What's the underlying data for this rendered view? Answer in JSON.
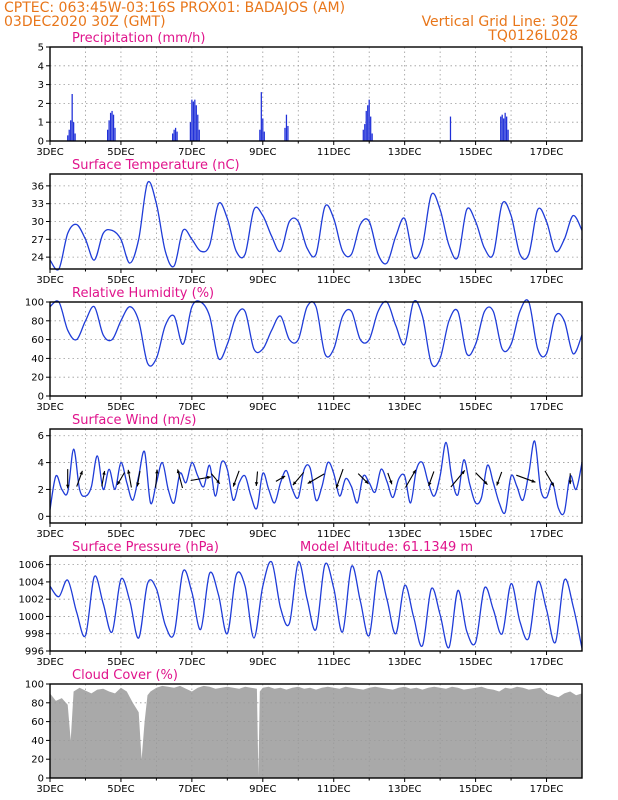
{
  "header": {
    "line1_left": "CPTEC:   063:45W-03:16S   PROX01: BADAJOS (AM)",
    "line2_left": "03DEC2020 30Z (GMT)",
    "line2_right": "Vertical Grid Line: 30Z",
    "line3_right": "TQ0126L028"
  },
  "colors": {
    "header": "#e8761a",
    "panel_title": "#e0148c",
    "series": "#1f3cd8",
    "cloud": "#a9a9a9"
  },
  "x_axis": {
    "range_hours": [
      0,
      360
    ],
    "tick_labels": [
      "3DEC",
      "5DEC",
      "7DEC",
      "9DEC",
      "11DEC",
      "13DEC",
      "15DEC",
      "17DEC"
    ],
    "tick_hours": [
      0,
      48,
      96,
      144,
      192,
      240,
      288,
      336
    ],
    "year_label": "2020"
  },
  "chart_data": [
    {
      "type": "bar",
      "title": "Precipitation (mm/h)",
      "ylim": [
        0,
        5
      ],
      "yticks": [
        0,
        1,
        2,
        3,
        4,
        5
      ],
      "bars": [
        {
          "x": 12,
          "y": 0.3
        },
        {
          "x": 13,
          "y": 0.6
        },
        {
          "x": 14,
          "y": 1.1
        },
        {
          "x": 15,
          "y": 2.5
        },
        {
          "x": 16,
          "y": 1.0
        },
        {
          "x": 17,
          "y": 0.4
        },
        {
          "x": 39,
          "y": 0.6
        },
        {
          "x": 40,
          "y": 1.1
        },
        {
          "x": 41,
          "y": 1.5
        },
        {
          "x": 42,
          "y": 1.6
        },
        {
          "x": 43,
          "y": 1.4
        },
        {
          "x": 44,
          "y": 0.7
        },
        {
          "x": 83,
          "y": 0.4
        },
        {
          "x": 84,
          "y": 0.6
        },
        {
          "x": 85,
          "y": 0.7
        },
        {
          "x": 86,
          "y": 0.5
        },
        {
          "x": 95,
          "y": 1.0
        },
        {
          "x": 96,
          "y": 2.2
        },
        {
          "x": 97,
          "y": 2.1
        },
        {
          "x": 98,
          "y": 2.2
        },
        {
          "x": 99,
          "y": 1.9
        },
        {
          "x": 100,
          "y": 1.4
        },
        {
          "x": 101,
          "y": 0.6
        },
        {
          "x": 142,
          "y": 0.6
        },
        {
          "x": 143,
          "y": 2.6
        },
        {
          "x": 144,
          "y": 1.2
        },
        {
          "x": 145,
          "y": 0.5
        },
        {
          "x": 159,
          "y": 0.7
        },
        {
          "x": 160,
          "y": 1.4
        },
        {
          "x": 161,
          "y": 0.8
        },
        {
          "x": 212,
          "y": 0.6
        },
        {
          "x": 213,
          "y": 0.9
        },
        {
          "x": 214,
          "y": 1.6
        },
        {
          "x": 215,
          "y": 1.9
        },
        {
          "x": 216,
          "y": 2.2
        },
        {
          "x": 217,
          "y": 1.3
        },
        {
          "x": 218,
          "y": 0.4
        },
        {
          "x": 271,
          "y": 1.3
        },
        {
          "x": 305,
          "y": 1.3
        },
        {
          "x": 306,
          "y": 1.4
        },
        {
          "x": 307,
          "y": 1.2
        },
        {
          "x": 308,
          "y": 1.5
        },
        {
          "x": 309,
          "y": 1.3
        },
        {
          "x": 310,
          "y": 0.6
        }
      ]
    },
    {
      "type": "line",
      "title": "Surface Temperature (nC)",
      "ylim": [
        22,
        38
      ],
      "yticks": [
        24,
        27,
        30,
        33,
        36
      ],
      "x": [
        0,
        6,
        12,
        18,
        24,
        30,
        36,
        42,
        48,
        54,
        60,
        66,
        72,
        78,
        84,
        90,
        96,
        102,
        108,
        114,
        120,
        126,
        132,
        138,
        144,
        150,
        156,
        162,
        168,
        174,
        180,
        186,
        192,
        198,
        204,
        210,
        216,
        222,
        228,
        234,
        240,
        246,
        252,
        258,
        264,
        270,
        276,
        282,
        288,
        294,
        300,
        306,
        312,
        318,
        324,
        330,
        336,
        342,
        348,
        354,
        360
      ],
      "y": [
        23.5,
        22,
        28,
        29.5,
        27,
        23.5,
        28,
        28.5,
        27,
        23,
        27,
        36.5,
        33,
        25,
        22.5,
        28.5,
        27,
        25,
        26,
        33,
        30.5,
        25,
        24.5,
        32,
        31,
        27.5,
        25,
        30,
        30,
        25.5,
        24.5,
        32.5,
        30.5,
        25,
        24.5,
        29.5,
        30,
        24.5,
        23,
        27.5,
        30.5,
        24,
        26,
        34.5,
        32,
        26,
        24,
        32,
        30,
        25.5,
        24.5,
        33,
        31,
        24.5,
        24.5,
        32,
        30,
        25,
        27,
        31,
        28.5
      ]
    },
    {
      "type": "line",
      "title": "Relative Humidity (%)",
      "ylim": [
        0,
        100
      ],
      "yticks": [
        0,
        20,
        40,
        60,
        80,
        100
      ],
      "x": [
        0,
        6,
        12,
        18,
        24,
        30,
        36,
        42,
        48,
        54,
        60,
        66,
        72,
        78,
        84,
        90,
        96,
        102,
        108,
        114,
        120,
        126,
        132,
        138,
        144,
        150,
        156,
        162,
        168,
        174,
        180,
        186,
        192,
        198,
        204,
        210,
        216,
        222,
        228,
        234,
        240,
        246,
        252,
        258,
        264,
        270,
        276,
        282,
        288,
        294,
        300,
        306,
        312,
        318,
        324,
        330,
        336,
        342,
        348,
        354,
        360
      ],
      "y": [
        95,
        100,
        70,
        60,
        80,
        95,
        65,
        60,
        80,
        95,
        80,
        35,
        40,
        75,
        85,
        55,
        95,
        100,
        85,
        40,
        55,
        85,
        90,
        50,
        50,
        70,
        85,
        60,
        60,
        95,
        95,
        45,
        50,
        85,
        90,
        60,
        60,
        90,
        100,
        75,
        55,
        100,
        85,
        35,
        40,
        80,
        90,
        45,
        55,
        90,
        90,
        50,
        55,
        90,
        100,
        50,
        45,
        85,
        80,
        45,
        65
      ]
    },
    {
      "type": "line",
      "title": "Surface Wind (m/s)",
      "ylim": [
        -0.5,
        6.5
      ],
      "yticks": [
        0,
        2,
        4,
        6
      ],
      "x": [
        0,
        4,
        8,
        12,
        16,
        20,
        24,
        28,
        32,
        36,
        40,
        44,
        48,
        52,
        56,
        60,
        64,
        68,
        72,
        76,
        80,
        84,
        88,
        92,
        96,
        100,
        104,
        108,
        112,
        116,
        120,
        124,
        128,
        132,
        136,
        140,
        144,
        148,
        152,
        156,
        160,
        164,
        168,
        172,
        176,
        180,
        184,
        188,
        192,
        196,
        200,
        204,
        208,
        212,
        216,
        220,
        224,
        228,
        232,
        236,
        240,
        244,
        248,
        252,
        256,
        260,
        264,
        268,
        272,
        276,
        280,
        284,
        288,
        292,
        296,
        300,
        304,
        308,
        312,
        316,
        320,
        324,
        328,
        332,
        336,
        340,
        344,
        348,
        352,
        356,
        360
      ],
      "y": [
        0.5,
        3.0,
        2.0,
        1.8,
        5.0,
        2.0,
        1.5,
        2.2,
        4.5,
        2.0,
        3.5,
        2.0,
        4.0,
        2.5,
        1.2,
        3.0,
        4.8,
        1.0,
        2.5,
        4.0,
        2.0,
        1.0,
        3.2,
        2.5,
        4.0,
        3.0,
        2.2,
        3.8,
        1.5,
        4.0,
        3.5,
        1.2,
        2.5,
        3.0,
        1.5,
        0.6,
        3.2,
        2.0,
        1.0,
        2.5,
        3.4,
        2.0,
        1.4,
        3.5,
        3.6,
        1.2,
        2.2,
        4.0,
        3.2,
        1.5,
        2.8,
        2.2,
        1.0,
        3.0,
        2.5,
        1.8,
        3.5,
        2.6,
        1.4,
        2.8,
        3.0,
        1.0,
        3.5,
        4.0,
        2.5,
        1.5,
        3.0,
        5.5,
        2.8,
        1.6,
        4.2,
        2.4,
        1.0,
        1.4,
        3.8,
        2.5,
        1.0,
        0.3,
        3.0,
        2.2,
        1.2,
        3.2,
        5.6,
        2.0,
        1.4,
        2.5,
        0.6,
        0.3,
        3.0,
        2.0,
        4.0
      ],
      "barbs_arrows": [
        {
          "x": 12,
          "dir_deg": 180,
          "len": 1.6
        },
        {
          "x": 20,
          "dir_deg": 20,
          "len": 1.4
        },
        {
          "x": 36,
          "dir_deg": 10,
          "len": 1.3
        },
        {
          "x": 48,
          "dir_deg": 210,
          "len": 1.2
        },
        {
          "x": 54,
          "dir_deg": 350,
          "len": 1.5
        },
        {
          "x": 60,
          "dir_deg": 190,
          "len": 1.3
        },
        {
          "x": 72,
          "dir_deg": 5,
          "len": 1.5
        },
        {
          "x": 88,
          "dir_deg": 345,
          "len": 1.6
        },
        {
          "x": 102,
          "dir_deg": 80,
          "len": 1.7
        },
        {
          "x": 112,
          "dir_deg": 140,
          "len": 1.1
        },
        {
          "x": 126,
          "dir_deg": 200,
          "len": 1.4
        },
        {
          "x": 140,
          "dir_deg": 185,
          "len": 1.2
        },
        {
          "x": 156,
          "dir_deg": 60,
          "len": 0.9
        },
        {
          "x": 168,
          "dir_deg": 220,
          "len": 1.4
        },
        {
          "x": 180,
          "dir_deg": 240,
          "len": 1.6
        },
        {
          "x": 196,
          "dir_deg": 200,
          "len": 1.7
        },
        {
          "x": 212,
          "dir_deg": 135,
          "len": 1.2
        },
        {
          "x": 230,
          "dir_deg": 160,
          "len": 1.0
        },
        {
          "x": 244,
          "dir_deg": 30,
          "len": 1.7
        },
        {
          "x": 258,
          "dir_deg": 200,
          "len": 1.3
        },
        {
          "x": 276,
          "dir_deg": 40,
          "len": 1.8
        },
        {
          "x": 292,
          "dir_deg": 135,
          "len": 1.4
        },
        {
          "x": 304,
          "dir_deg": 200,
          "len": 1.2
        },
        {
          "x": 322,
          "dir_deg": 110,
          "len": 1.7
        },
        {
          "x": 338,
          "dir_deg": 150,
          "len": 1.5
        },
        {
          "x": 352,
          "dir_deg": 180,
          "len": 0.9
        }
      ]
    },
    {
      "type": "line",
      "title": "Surface Pressure (hPa)",
      "subtitle": "Model Altitude: 61.1349 m",
      "ylim": [
        996,
        1007
      ],
      "yticks": [
        996,
        998,
        1000,
        1002,
        1004,
        1006
      ],
      "x": [
        0,
        6,
        12,
        18,
        24,
        30,
        36,
        42,
        48,
        54,
        60,
        66,
        72,
        78,
        84,
        90,
        96,
        102,
        108,
        114,
        120,
        126,
        132,
        138,
        144,
        150,
        156,
        162,
        168,
        174,
        180,
        186,
        192,
        198,
        204,
        210,
        216,
        222,
        228,
        234,
        240,
        246,
        252,
        258,
        264,
        270,
        276,
        282,
        288,
        294,
        300,
        306,
        312,
        318,
        324,
        330,
        336,
        342,
        348,
        354,
        360
      ],
      "y": [
        1003.5,
        1002.3,
        1004.2,
        1000.5,
        997.8,
        1004.6,
        1001.5,
        998.2,
        1004.3,
        1001.8,
        997.5,
        1003.8,
        1003.2,
        999.0,
        998.0,
        1005.2,
        1002.8,
        998.5,
        1005.0,
        1002.5,
        998.0,
        1004.8,
        1003.5,
        997.5,
        1003.5,
        1006.3,
        1001.0,
        999.2,
        1006.3,
        1002.0,
        998.5,
        1006.0,
        1003.3,
        998.2,
        1005.8,
        1001.8,
        997.8,
        1005.2,
        1002.0,
        998.0,
        1003.6,
        1000.0,
        996.6,
        1003.2,
        1000.2,
        996.4,
        1003.0,
        998.3,
        997.0,
        1003.3,
        1000.8,
        998.0,
        1003.8,
        999.4,
        997.5,
        1004.0,
        1000.8,
        997.0,
        1004.2,
        1001.2,
        996.3
      ]
    },
    {
      "type": "area",
      "title": "Cloud Cover (%)",
      "ylim": [
        0,
        100
      ],
      "yticks": [
        0,
        20,
        40,
        60,
        80,
        100
      ],
      "x": [
        0,
        4,
        8,
        12,
        14,
        16,
        20,
        24,
        28,
        32,
        36,
        40,
        44,
        48,
        52,
        56,
        60,
        62,
        64,
        66,
        68,
        72,
        76,
        80,
        84,
        88,
        92,
        96,
        100,
        104,
        108,
        112,
        116,
        120,
        124,
        128,
        132,
        136,
        140,
        141,
        142,
        144,
        148,
        152,
        156,
        160,
        164,
        168,
        172,
        176,
        180,
        184,
        188,
        192,
        196,
        200,
        204,
        208,
        212,
        216,
        220,
        224,
        228,
        232,
        236,
        240,
        244,
        248,
        252,
        256,
        260,
        264,
        268,
        272,
        276,
        280,
        284,
        288,
        292,
        296,
        300,
        304,
        308,
        312,
        316,
        320,
        324,
        328,
        332,
        336,
        340,
        344,
        348,
        352,
        356,
        360
      ],
      "y": [
        90,
        82,
        85,
        78,
        40,
        92,
        96,
        93,
        90,
        94,
        95,
        92,
        90,
        96,
        92,
        80,
        70,
        20,
        60,
        88,
        92,
        96,
        98,
        97,
        96,
        98,
        95,
        92,
        96,
        98,
        97,
        95,
        96,
        97,
        96,
        95,
        97,
        96,
        95,
        2,
        92,
        96,
        97,
        95,
        96,
        94,
        96,
        97,
        95,
        96,
        94,
        96,
        97,
        96,
        95,
        97,
        96,
        95,
        94,
        96,
        97,
        96,
        95,
        94,
        96,
        97,
        95,
        96,
        94,
        96,
        97,
        96,
        95,
        97,
        96,
        94,
        95,
        96,
        97,
        95,
        94,
        92,
        96,
        95,
        97,
        96,
        94,
        95,
        96,
        90,
        88,
        86,
        90,
        92,
        88,
        90
      ]
    }
  ]
}
